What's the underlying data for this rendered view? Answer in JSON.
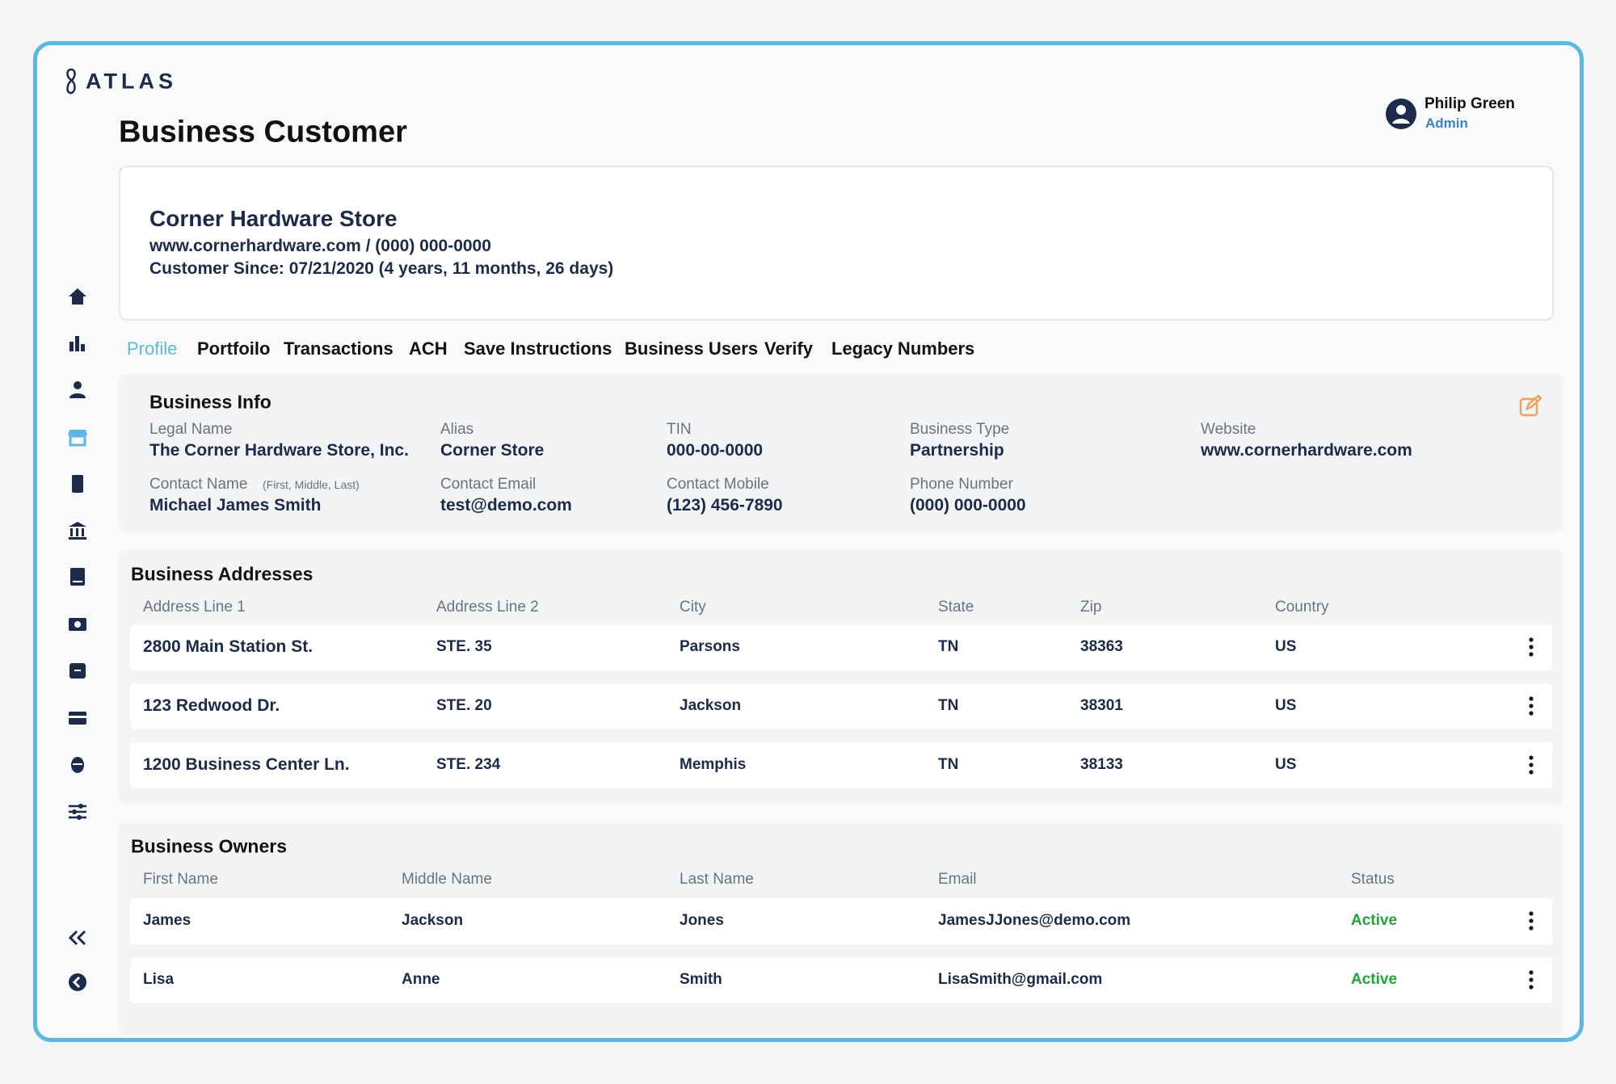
{
  "header": {
    "logo": "ATLAS",
    "title": "Business Customer"
  },
  "user": {
    "name": "Philip Green",
    "role": "Admin"
  },
  "customer": {
    "name": "Corner Hardware Store",
    "contact": "www.cornerhardware.com / (000) 000-0000",
    "since": "Customer Since: 07/21/2020 (4 years, 11 months, 26 days)"
  },
  "tabs": [
    "Profile",
    "Portfoilo",
    "Transactions",
    "ACH",
    "Save Instructions",
    "Business Users",
    "Verify",
    "Legacy Numbers"
  ],
  "business_info": {
    "title": "Business Info",
    "fields": [
      {
        "label": "Legal Name",
        "value": "The Corner Hardware Store, Inc."
      },
      {
        "label": "Alias",
        "value": "Corner Store"
      },
      {
        "label": "TIN",
        "value": "000-00-0000"
      },
      {
        "label": "Business Type",
        "value": "Partnership"
      },
      {
        "label": "Website",
        "value": "www.cornerhardware.com"
      },
      {
        "label": "Contact Name",
        "note": "(First, Middle, Last)",
        "value": "Michael James Smith"
      },
      {
        "label": "Contact Email",
        "value": "test@demo.com"
      },
      {
        "label": "Contact Mobile",
        "value": "(123) 456-7890"
      },
      {
        "label": "Phone Number",
        "value": "(000) 000-0000"
      }
    ]
  },
  "addresses": {
    "title": "Business Addresses",
    "columns": [
      "Address Line 1",
      "Address Line 2",
      "City",
      "State",
      "Zip",
      "Country"
    ],
    "rows": [
      [
        "2800 Main Station St.",
        "STE. 35",
        "Parsons",
        "TN",
        "38363",
        "US"
      ],
      [
        "123 Redwood Dr.",
        "STE. 20",
        "Jackson",
        "TN",
        "38301",
        "US"
      ],
      [
        "1200 Business Center Ln.",
        "STE. 234",
        "Memphis",
        "TN",
        "38133",
        "US"
      ]
    ]
  },
  "owners": {
    "title": "Business Owners",
    "columns": [
      "First Name",
      "Middle Name",
      "Last Name",
      "Email",
      "Status"
    ],
    "rows": [
      [
        "James",
        "Jackson",
        "Jones",
        "JamesJJones@demo.com",
        "Active"
      ],
      [
        "Lisa",
        "Anne",
        "Smith",
        "LisaSmith@gmail.com",
        "Active"
      ]
    ]
  }
}
